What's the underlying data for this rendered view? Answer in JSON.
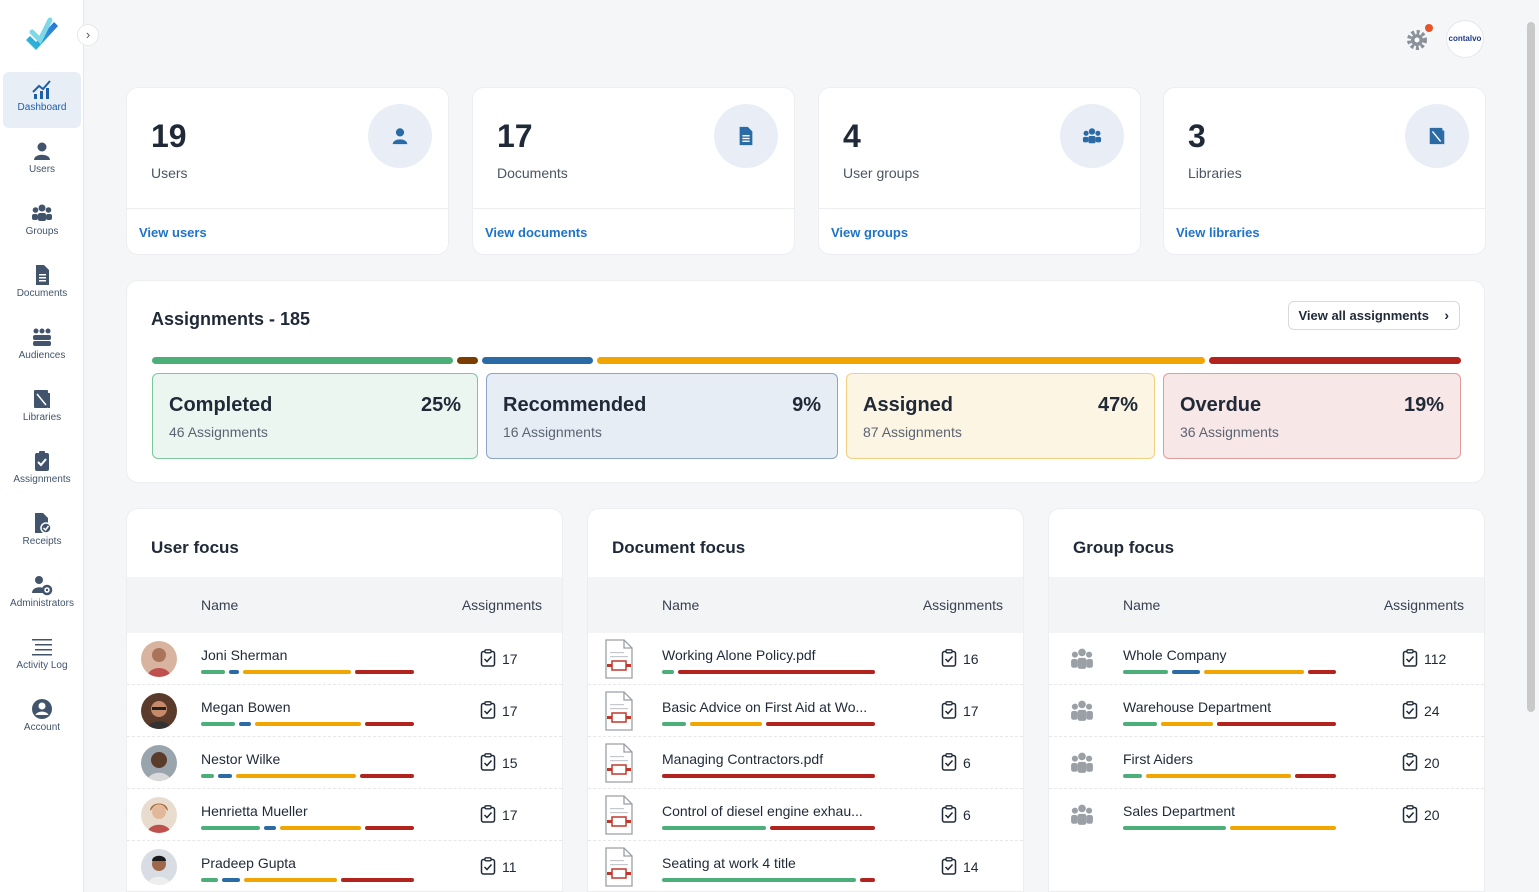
{
  "brand": {
    "account_badge": "contalvo"
  },
  "sidebar": {
    "items": [
      {
        "label": "Dashboard",
        "icon": "chart-icon",
        "active": true
      },
      {
        "label": "Users",
        "icon": "user-icon"
      },
      {
        "label": "Groups",
        "icon": "groups-icon"
      },
      {
        "label": "Documents",
        "icon": "document-icon"
      },
      {
        "label": "Audiences",
        "icon": "audiences-icon"
      },
      {
        "label": "Libraries",
        "icon": "library-icon"
      },
      {
        "label": "Assignments",
        "icon": "clipboard-check-icon"
      },
      {
        "label": "Receipts",
        "icon": "receipt-icon"
      },
      {
        "label": "Administrators",
        "icon": "admin-gear-icon"
      },
      {
        "label": "Activity Log",
        "icon": "list-icon"
      },
      {
        "label": "Account",
        "icon": "account-circle-icon"
      }
    ]
  },
  "stats": [
    {
      "value": "19",
      "label": "Users",
      "link": "View users",
      "icon": "user-icon"
    },
    {
      "value": "17",
      "label": "Documents",
      "link": "View documents",
      "icon": "document-icon"
    },
    {
      "value": "4",
      "label": "User groups",
      "link": "View groups",
      "icon": "groups-icon"
    },
    {
      "value": "3",
      "label": "Libraries",
      "link": "View libraries",
      "icon": "library-icon"
    }
  ],
  "assignments": {
    "title": "Assignments - 185",
    "view_all": "View all assignments",
    "statuses": [
      {
        "name": "Completed",
        "pct": "25%",
        "count": "46 Assignments",
        "color": "#4caf7a"
      },
      {
        "name": "Recommended",
        "pct": "9%",
        "count": "16 Assignments",
        "color": "#2a6aa5"
      },
      {
        "name": "Assigned",
        "pct": "47%",
        "count": "87 Assignments",
        "color": "#f0a500"
      },
      {
        "name": "Overdue",
        "pct": "19%",
        "count": "36 Assignments",
        "color": "#b3231d"
      }
    ]
  },
  "user_focus": {
    "title": "User focus",
    "col_name": "Name",
    "col_assignments": "Assignments",
    "rows": [
      {
        "name": "Joni Sherman",
        "count": "17"
      },
      {
        "name": "Megan Bowen",
        "count": "17"
      },
      {
        "name": "Nestor Wilke",
        "count": "15"
      },
      {
        "name": "Henrietta Mueller",
        "count": "17"
      },
      {
        "name": "Pradeep Gupta",
        "count": "11"
      }
    ]
  },
  "document_focus": {
    "title": "Document focus",
    "col_name": "Name",
    "col_assignments": "Assignments",
    "rows": [
      {
        "name": "Working Alone Policy.pdf",
        "count": "16"
      },
      {
        "name": "Basic Advice on First Aid at Wo...",
        "count": "17"
      },
      {
        "name": "Managing Contractors.pdf",
        "count": "6"
      },
      {
        "name": "Control of diesel engine exhau...",
        "count": "6"
      },
      {
        "name": "Seating at work 4 title",
        "count": "14"
      }
    ]
  },
  "group_focus": {
    "title": "Group focus",
    "col_name": "Name",
    "col_assignments": "Assignments",
    "rows": [
      {
        "name": "Whole Company",
        "count": "112"
      },
      {
        "name": "Warehouse Department",
        "count": "24"
      },
      {
        "name": "First Aiders",
        "count": "20"
      },
      {
        "name": "Sales Department",
        "count": "20"
      }
    ]
  }
}
